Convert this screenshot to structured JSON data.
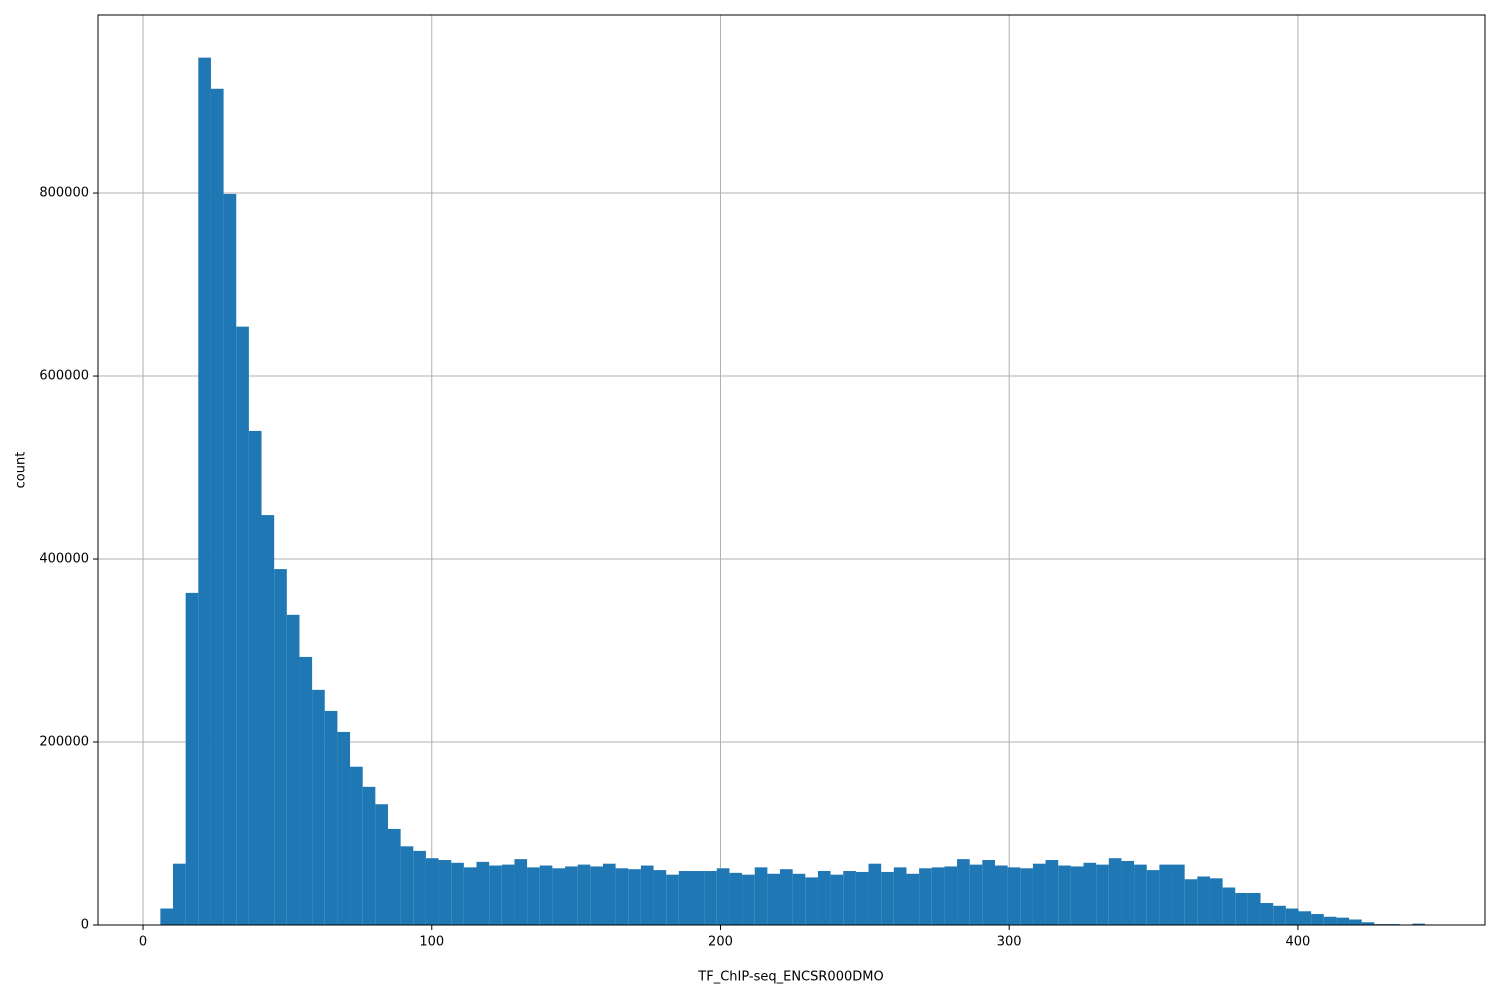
{
  "chart_data": {
    "type": "histogram",
    "xlabel": "TF_ChIP-seq_ENCSR000DMO",
    "ylabel": "count",
    "color": "#1f77b4",
    "grid": true,
    "bins": [
      6,
      10.38,
      14.76,
      19.14,
      23.52,
      27.9,
      32.28,
      36.66,
      41.04,
      45.42,
      49.8,
      54.18,
      58.56,
      62.94,
      67.32,
      71.7,
      76.08,
      80.46,
      84.84,
      89.22,
      93.6,
      97.98,
      102.36,
      106.74,
      111.12,
      115.5,
      119.88,
      124.26,
      128.64,
      133.02,
      137.4,
      141.78,
      146.16,
      150.54,
      154.92,
      159.3,
      163.68,
      168.06,
      172.44,
      176.82,
      181.2,
      185.58,
      189.96,
      194.34,
      198.72,
      203.1,
      207.48,
      211.86,
      216.24,
      220.62,
      225,
      229.38,
      233.76,
      238.14,
      242.52,
      246.9,
      251.28,
      255.66,
      260.04,
      264.42,
      268.8,
      273.18,
      277.56,
      281.94,
      286.32,
      290.7,
      295.08,
      299.46,
      303.84,
      308.22,
      312.6,
      316.98,
      321.36,
      325.74,
      330.12,
      334.5,
      338.88,
      343.26,
      347.64,
      352.02,
      356.4,
      360.78,
      365.16,
      369.54,
      373.92,
      378.3,
      382.68,
      387.06,
      391.44,
      395.82,
      400.2,
      404.58,
      408.96,
      413.34,
      417.72,
      422.1,
      426.48,
      430.86,
      435.24,
      439.62,
      444
    ],
    "values": [
      18000,
      67000,
      363000,
      948000,
      914000,
      799000,
      654000,
      540000,
      448000,
      389000,
      339000,
      293000,
      257000,
      234000,
      211000,
      173000,
      151000,
      132000,
      105000,
      86000,
      81000,
      73000,
      71000,
      68000,
      63000,
      69000,
      65000,
      66000,
      72000,
      63000,
      65000,
      62000,
      64000,
      66000,
      64000,
      67000,
      62000,
      61000,
      65000,
      60000,
      55000,
      59000,
      59000,
      59000,
      62000,
      57000,
      55000,
      63000,
      56000,
      61000,
      56000,
      52000,
      59000,
      55000,
      59000,
      58000,
      67000,
      58000,
      63000,
      56000,
      62000,
      63000,
      64000,
      72000,
      66000,
      71000,
      65000,
      63000,
      62000,
      67000,
      71000,
      65000,
      64000,
      68000,
      66000,
      73000,
      70000,
      66000,
      60000,
      66000,
      66000,
      50000,
      53000,
      51000,
      41000,
      35000,
      35000,
      24000,
      21000,
      18000,
      15000,
      12000,
      9000,
      8000,
      6000,
      3000,
      1000,
      1000,
      500,
      1500
    ],
    "xlim": [
      -15.6,
      464.8
    ],
    "xticks": [
      0,
      100,
      200,
      300,
      400
    ],
    "ylim": [
      0,
      994600
    ],
    "yticks": [
      0,
      200000,
      400000,
      600000,
      800000
    ]
  }
}
